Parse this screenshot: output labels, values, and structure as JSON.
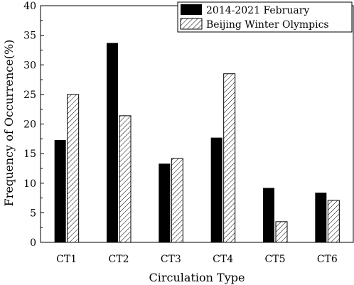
{
  "chart_data": {
    "type": "bar",
    "title": "",
    "xlabel": "Circulation Type",
    "ylabel": "Frequency of Occurrence(%)",
    "ylim": [
      0,
      40
    ],
    "yticks": [
      0,
      5,
      10,
      15,
      20,
      25,
      30,
      35,
      40
    ],
    "categories": [
      "CT1",
      "CT2",
      "CT3",
      "CT4",
      "CT5",
      "CT6"
    ],
    "series": [
      {
        "name": "2014-2021 February",
        "values": [
          17.3,
          33.7,
          13.3,
          17.7,
          9.2,
          8.4
        ],
        "fill": "solid",
        "color": "#000000"
      },
      {
        "name": "Beijing Winter Olympics",
        "values": [
          25.0,
          21.4,
          14.2,
          28.5,
          3.5,
          7.1
        ],
        "fill": "hatched",
        "color": "#000000"
      }
    ],
    "grid": false,
    "legend_position": "top-right"
  }
}
